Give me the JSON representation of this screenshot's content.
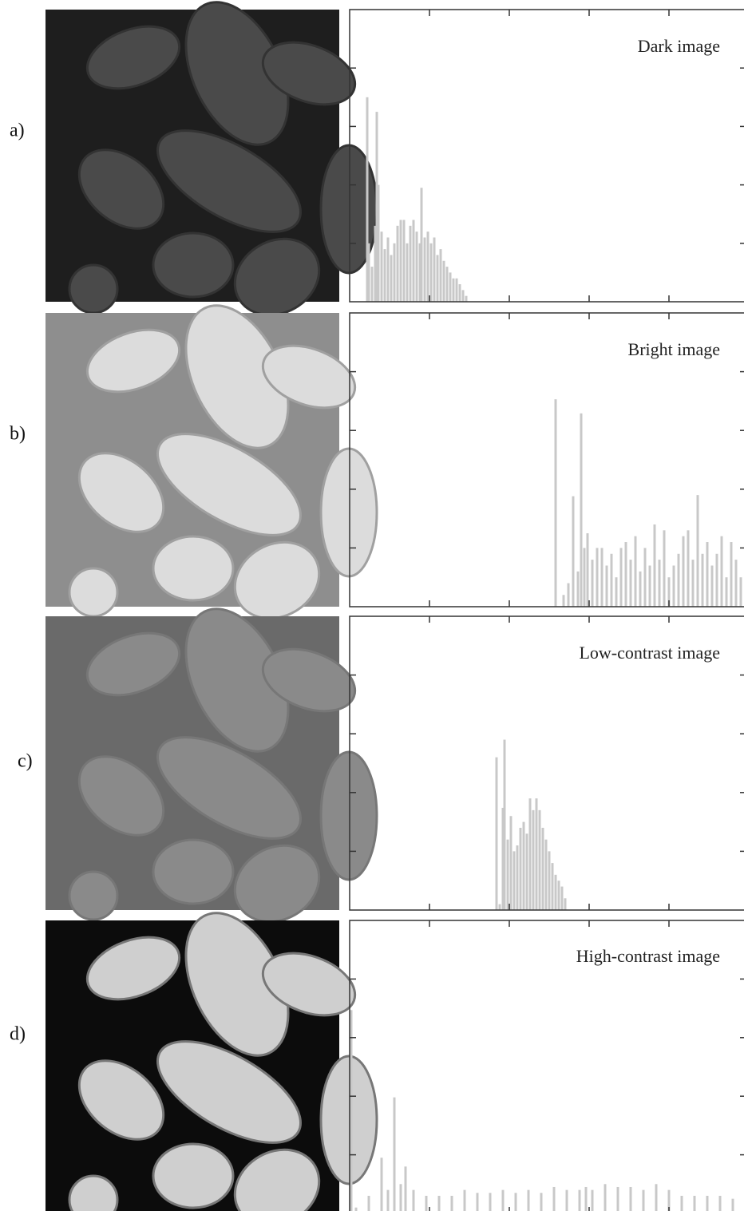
{
  "chart_data": [
    {
      "type": "bar",
      "panel_label": "a)",
      "title": "Dark image",
      "color": "#c8c8c8",
      "xlim": [
        0,
        255
      ],
      "xticks": [
        50,
        100,
        150,
        200
      ],
      "ylim": [
        0,
        5
      ],
      "yticks": [
        1,
        2,
        3,
        4
      ],
      "x": [
        11,
        12,
        14,
        16,
        17,
        18,
        20,
        22,
        24,
        26,
        28,
        30,
        32,
        34,
        36,
        38,
        40,
        42,
        44,
        45,
        47,
        49,
        51,
        53,
        55,
        57,
        59,
        61,
        63,
        65,
        67,
        69,
        71,
        73
      ],
      "values": [
        3.5,
        1.0,
        0.6,
        1.3,
        3.25,
        2.0,
        1.2,
        0.9,
        1.1,
        0.8,
        1.0,
        1.3,
        1.4,
        1.4,
        1.0,
        1.3,
        1.4,
        1.2,
        1.0,
        1.95,
        1.1,
        1.2,
        1.0,
        1.1,
        0.8,
        0.9,
        0.7,
        0.6,
        0.5,
        0.4,
        0.4,
        0.3,
        0.2,
        0.1
      ]
    },
    {
      "type": "bar",
      "panel_label": "b)",
      "title": "Bright image",
      "color": "#c8c8c8",
      "xlim": [
        0,
        255
      ],
      "xticks": [
        50,
        100,
        150,
        200
      ],
      "ylim": [
        0,
        5
      ],
      "yticks": [
        1,
        2,
        3,
        4
      ],
      "x": [
        129,
        134,
        137,
        140,
        143,
        145,
        147,
        149,
        152,
        155,
        158,
        161,
        164,
        167,
        170,
        173,
        176,
        179,
        182,
        185,
        188,
        191,
        194,
        197,
        200,
        203,
        206,
        209,
        212,
        215,
        218,
        221,
        224,
        227,
        230,
        233,
        236,
        239,
        242,
        245
      ],
      "values": [
        3.53,
        0.2,
        0.4,
        1.88,
        0.6,
        3.29,
        1.0,
        1.25,
        0.8,
        1.0,
        1.0,
        0.7,
        0.9,
        0.5,
        1.0,
        1.1,
        0.8,
        1.2,
        0.6,
        1.0,
        0.7,
        1.4,
        0.8,
        1.3,
        0.5,
        0.7,
        0.9,
        1.2,
        1.3,
        0.8,
        1.9,
        0.9,
        1.1,
        0.7,
        0.9,
        1.2,
        0.5,
        1.1,
        0.8,
        0.5
      ]
    },
    {
      "type": "bar",
      "panel_label": "c)",
      "title": "Low-contrast image",
      "color": "#c8c8c8",
      "xlim": [
        0,
        255
      ],
      "xticks": [
        50,
        100,
        150,
        200
      ],
      "ylim": [
        0,
        5
      ],
      "yticks": [
        1,
        2,
        3,
        4
      ],
      "x": [
        92,
        94,
        96,
        97,
        99,
        101,
        103,
        105,
        107,
        109,
        111,
        113,
        115,
        117,
        119,
        121,
        123,
        125,
        127,
        129,
        131,
        133,
        135
      ],
      "values": [
        2.6,
        0.1,
        1.74,
        2.9,
        1.2,
        1.6,
        1.0,
        1.1,
        1.4,
        1.5,
        1.3,
        1.9,
        1.7,
        1.9,
        1.7,
        1.4,
        1.2,
        1.0,
        0.8,
        0.6,
        0.5,
        0.4,
        0.2
      ]
    },
    {
      "type": "bar",
      "panel_label": "d)",
      "title": "High-contrast image",
      "color": "#c8c8c8",
      "xlim": [
        0,
        255
      ],
      "xticks": [
        50,
        100,
        150,
        200
      ],
      "ylim": [
        0,
        5
      ],
      "yticks": [
        1,
        2,
        3,
        4
      ],
      "x": [
        1,
        4,
        12,
        20,
        24,
        28,
        32,
        35,
        40,
        48,
        56,
        64,
        72,
        80,
        88,
        96,
        104,
        112,
        120,
        128,
        136,
        144,
        148,
        152,
        160,
        168,
        176,
        184,
        192,
        200,
        208,
        216,
        224,
        232,
        240,
        248
      ],
      "values": [
        3.47,
        0.1,
        0.3,
        0.95,
        0.4,
        1.98,
        0.5,
        0.8,
        0.4,
        0.3,
        0.3,
        0.3,
        0.4,
        0.35,
        0.35,
        0.4,
        0.35,
        0.4,
        0.35,
        0.45,
        0.4,
        0.4,
        0.45,
        0.4,
        0.5,
        0.45,
        0.45,
        0.4,
        0.5,
        0.4,
        0.3,
        0.3,
        0.3,
        0.3,
        0.25,
        0.2
      ]
    }
  ]
}
